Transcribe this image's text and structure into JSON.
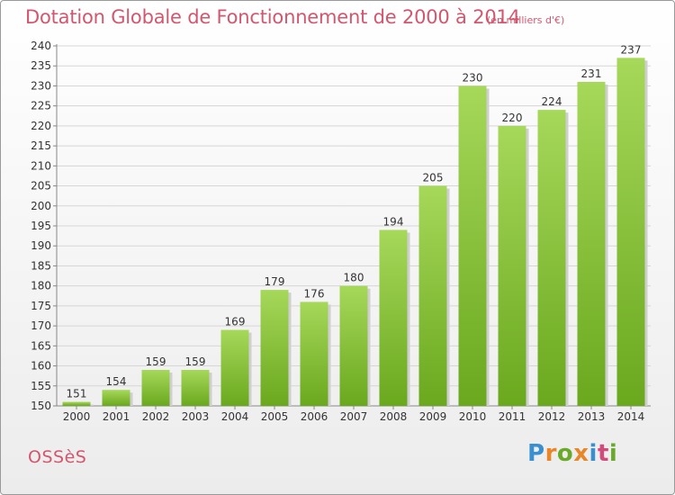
{
  "header": {
    "title": "Dotation Globale de Fonctionnement de 2000 à 2014",
    "unit": "(en milliers d'€)"
  },
  "footer": {
    "commune": "OSSèS",
    "logo": "Proxiti",
    "logo_colors": [
      "#3a8fd1",
      "#e8862a",
      "#6aaa2a",
      "#e8862a",
      "#3a8fd1",
      "#d24a7a",
      "#6aaa2a"
    ]
  },
  "chart_data": {
    "type": "bar",
    "categories": [
      "2000",
      "2001",
      "2002",
      "2003",
      "2004",
      "2005",
      "2006",
      "2007",
      "2008",
      "2009",
      "2010",
      "2011",
      "2012",
      "2013",
      "2014"
    ],
    "values": [
      151,
      154,
      159,
      159,
      169,
      179,
      176,
      180,
      194,
      205,
      230,
      220,
      224,
      231,
      237
    ],
    "ylim": [
      150,
      240
    ],
    "ytick_step": 5,
    "grid": true,
    "bar_color_light": "#a6d85a",
    "bar_color_dark": "#6aa81e"
  }
}
